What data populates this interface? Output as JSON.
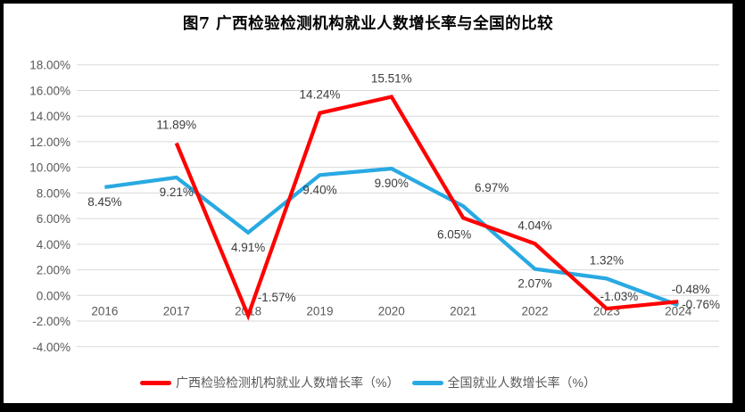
{
  "frame": {
    "border_color": "#000000",
    "background": "#FFFFFF"
  },
  "chart_data": {
    "type": "line",
    "title": "图7 广西检验检测机构就业人数增长率与全国的比较",
    "categories": [
      "2016",
      "2017",
      "2018",
      "2019",
      "2020",
      "2021",
      "2022",
      "2023",
      "2024"
    ],
    "series": [
      {
        "name": "广西检验检测机构就业人数增长率（%）",
        "color": "#FF0000",
        "values": [
          null,
          11.89,
          -1.57,
          14.24,
          15.51,
          6.05,
          4.04,
          -1.03,
          -0.48
        ],
        "point_labels": [
          "",
          "11.89%",
          "-1.57%",
          "14.24%",
          "15.51%",
          "6.05%",
          "4.04%",
          "-1.03%",
          "-0.48%"
        ],
        "label_positions": [
          "",
          "above",
          "above-right",
          "above",
          "above",
          "below-left",
          "above",
          "pair-top",
          "pair-top"
        ]
      },
      {
        "name": "全国就业人数增长率（%）",
        "color": "#29A9E2",
        "values": [
          8.45,
          9.21,
          4.91,
          9.4,
          9.9,
          6.97,
          2.07,
          1.32,
          -0.76
        ],
        "point_labels": [
          "8.45%",
          "9.21%",
          "4.91%",
          "9.40%",
          "9.90%",
          "6.97%",
          "2.07%",
          "1.32%",
          "-0.76%"
        ],
        "label_positions": [
          "below",
          "below",
          "below",
          "below",
          "below",
          "above-right",
          "below",
          "above",
          "pair-bottom"
        ]
      }
    ],
    "y_axis": {
      "ticks": [
        "18.00%",
        "16.00%",
        "14.00%",
        "12.00%",
        "10.00%",
        "8.00%",
        "6.00%",
        "4.00%",
        "2.00%",
        "0.00%",
        "-2.00%",
        "-4.00%"
      ],
      "max": 18,
      "min": -4,
      "step": 2
    },
    "grid": true,
    "legend_position": "bottom",
    "gridline_color": "#D9D9D9",
    "axis_text_color": "#595959",
    "label_text_color": "#3B3B3B"
  }
}
